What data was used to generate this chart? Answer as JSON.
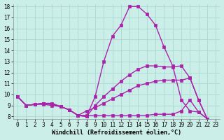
{
  "xlabel": "Windchill (Refroidissement éolien,°C)",
  "background_color": "#cceee8",
  "grid_color": "#aad8d2",
  "line_color": "#aa22aa",
  "xlim": [
    -0.5,
    23.5
  ],
  "ylim": [
    7.8,
    18.2
  ],
  "xticks": [
    0,
    1,
    2,
    3,
    4,
    5,
    6,
    7,
    8,
    9,
    10,
    11,
    12,
    13,
    14,
    15,
    16,
    17,
    18,
    19,
    20,
    21,
    22,
    23
  ],
  "yticks": [
    8,
    9,
    10,
    11,
    12,
    13,
    14,
    15,
    16,
    17,
    18
  ],
  "line1": [
    9.8,
    9.0,
    9.1,
    9.2,
    9.2,
    8.9,
    8.6,
    8.1,
    8.0,
    9.8,
    13.0,
    15.3,
    16.3,
    18.0,
    18.0,
    17.3,
    16.3,
    14.3,
    12.6,
    9.5,
    8.5,
    8.4,
    7.8
  ],
  "line2": [
    9.8,
    9.0,
    9.1,
    9.2,
    9.1,
    8.9,
    8.6,
    8.1,
    8.0,
    9.0,
    9.8,
    10.5,
    11.2,
    11.8,
    12.3,
    12.6,
    12.6,
    12.5,
    12.5,
    12.6,
    11.5,
    9.5,
    7.8
  ],
  "line3": [
    9.8,
    9.0,
    9.1,
    9.2,
    9.1,
    8.9,
    8.6,
    8.1,
    8.5,
    8.8,
    9.2,
    9.6,
    10.0,
    10.4,
    10.8,
    11.0,
    11.2,
    11.3,
    11.3,
    11.3,
    11.5,
    9.5,
    7.8
  ],
  "line4": [
    9.8,
    9.0,
    9.1,
    9.1,
    9.0,
    8.9,
    8.6,
    8.1,
    8.1,
    8.1,
    8.1,
    8.1,
    8.1,
    8.1,
    8.1,
    8.1,
    8.2,
    8.2,
    8.2,
    8.5,
    9.5,
    8.4,
    7.8
  ],
  "marker": "s",
  "markersize": 2.5,
  "linewidth": 1.0,
  "tick_fontsize": 5.5,
  "xlabel_fontsize": 6.0
}
